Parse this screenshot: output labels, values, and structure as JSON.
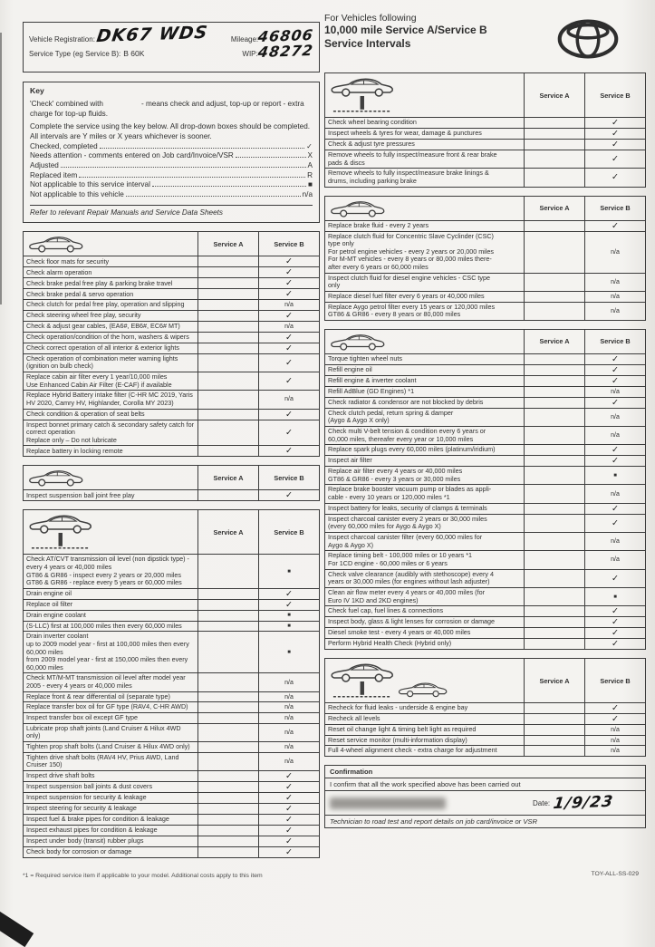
{
  "colors": {
    "paper": "#f3f2ef",
    "ink": "#2f2f2f",
    "handwriting": "#161616"
  },
  "vehicle_info": {
    "reg_label": "Vehicle Registration:",
    "reg_value": "DK67 WDS",
    "mileage_label": "Mileage:",
    "mileage_value": "46806",
    "service_type_label": "Service Type (eg Service B):",
    "service_type_value": "B 60K",
    "wip_label": "WIP:",
    "wip_value": "48272"
  },
  "title": {
    "line1": "For Vehicles following",
    "line2": "10,000 mile Service A/Service B",
    "line3": "Service Intervals"
  },
  "key": {
    "title": "Key",
    "intro1a": "'Check' combined with",
    "intro1b": "- means check and adjust, top-up or report - extra charge for top-up fluids.",
    "intro2": "Complete the service using the key below. All drop-down boxes should be completed. All intervals are Y miles or X years whichever is sooner.",
    "items": [
      {
        "label": "Checked, completed",
        "symbol": "✓"
      },
      {
        "label": "Needs attention - comments entered on Job card/Invoice/VSR",
        "symbol": "X"
      },
      {
        "label": "Adjusted",
        "symbol": "A"
      },
      {
        "label": "Replaced item",
        "symbol": "R"
      },
      {
        "label": "Not applicable to this service interval",
        "symbol": "■"
      },
      {
        "label": "Not applicable to this vehicle",
        "symbol": "n/a"
      }
    ],
    "footer": "Refer to relevant Repair Manuals and Service Data Sheets"
  },
  "col_headers": {
    "a": "Service A",
    "b": "Service B"
  },
  "tables": {
    "left": [
      {
        "icon": "car",
        "rows": [
          {
            "t": "Check floor mats for security",
            "a": "",
            "b": "✓"
          },
          {
            "t": "Check alarm operation",
            "a": "",
            "b": "✓"
          },
          {
            "t": "Check brake pedal free play & parking brake travel",
            "a": "",
            "b": "✓"
          },
          {
            "t": "Check brake pedal & servo operation",
            "a": "",
            "b": "✓"
          },
          {
            "t": "Check clutch for pedal free play, operation and slipping",
            "a": "",
            "b": "n/a"
          },
          {
            "t": "Check steering wheel free play, security",
            "a": "",
            "b": "✓"
          },
          {
            "t": "Check & adjust gear cables, (EA6#, EB6#, EC6# MT)",
            "a": "",
            "b": "n/a"
          },
          {
            "t": "Check operation/condition of the horn, washers & wipers",
            "a": "",
            "b": "✓"
          },
          {
            "t": "Check correct operation of all interior & exterior lights",
            "a": "",
            "b": "✓"
          },
          {
            "t": "Check operation of combination meter warning lights\n(ignition on bulb check)",
            "a": "",
            "b": "✓"
          },
          {
            "t": "Replace cabin air filter every 1 year/10,000 miles\nUse Enhanced Cabin Air Filter (E-CAF) if available",
            "a": "",
            "b": "✓"
          },
          {
            "t": "Replace Hybrid Battery intake filter (C-HR MC 2019, Yaris\nHV 2020, Camry HV, Highlander, Corolla MY 2023)",
            "a": "",
            "b": "n/a"
          },
          {
            "t": "Check condition & operation of seat belts",
            "a": "",
            "b": "✓"
          },
          {
            "t": "Inspect bonnet primary catch & secondary safety catch for\ncorrect operation\nReplace only – Do not lubricate",
            "a": "",
            "b": "✓"
          },
          {
            "t": "Replace battery in locking remote",
            "a": "",
            "b": "✓"
          }
        ]
      },
      {
        "icon": "car",
        "rows": [
          {
            "t": "Inspect suspension ball joint free play",
            "a": "",
            "b": "✓"
          }
        ]
      },
      {
        "icon": "lift",
        "rows": [
          {
            "t": "Check AT/CVT transmission oil level (non dipstick type) -\nevery 4 years or 40,000 miles\nGT86 & GR86 - inspect every 2 years or 20,000 miles\nGT86 & GR86 - replace every 5 years or 60,000 miles",
            "a": "",
            "b": "■"
          },
          {
            "t": "Drain engine oil",
            "a": "",
            "b": "✓"
          },
          {
            "t": "Replace oil filter",
            "a": "",
            "b": "✓"
          },
          {
            "t": "Drain engine coolant",
            "a": "",
            "b": "■"
          },
          {
            "t": "(S-LLC) first at 100,000 miles then every 60,000 miles",
            "a": "",
            "b": "■"
          },
          {
            "t": "Drain inverter coolant\nup to 2009 model year - first at 100,000 miles then every\n60,000 miles\nfrom 2009 model year - first at 150,000 miles then every\n60,000 miles",
            "a": "",
            "b": "■"
          },
          {
            "t": "Check MT/M-MT transmission oil level after model year\n2005 - every 4 years or 40,000 miles",
            "a": "",
            "b": "n/a"
          },
          {
            "t": "Replace front & rear differential oil (separate type)",
            "a": "",
            "b": "n/a"
          },
          {
            "t": "Replace transfer box oil for GF type (RAV4, C-HR AWD)",
            "a": "",
            "b": "n/a"
          },
          {
            "t": "Inspect transfer box oil except GF type",
            "a": "",
            "b": "n/a"
          },
          {
            "t": "Lubricate prop shaft joints (Land Cruiser & Hilux 4WD\nonly)",
            "a": "",
            "b": "n/a"
          },
          {
            "t": "Tighten prop shaft bolts (Land Cruiser & Hilux 4WD only)",
            "a": "",
            "b": "n/a"
          },
          {
            "t": "Tighten drive shaft bolts (RAV4 HV, Prius AWD, Land\nCruiser 150)",
            "a": "",
            "b": "n/a"
          },
          {
            "t": "Inspect drive shaft bolts",
            "a": "",
            "b": "✓"
          },
          {
            "t": "Inspect suspension ball joints & dust covers",
            "a": "",
            "b": "✓"
          },
          {
            "t": "Inspect suspension for security & leakage",
            "a": "",
            "b": "✓"
          },
          {
            "t": "Inspect steering for security & leakage",
            "a": "",
            "b": "✓"
          },
          {
            "t": "Inspect fuel & brake pipes for condition & leakage",
            "a": "",
            "b": "✓"
          },
          {
            "t": "Inspect exhaust pipes for condition & leakage",
            "a": "",
            "b": "✓"
          },
          {
            "t": "Inspect under body (transit) rubber plugs",
            "a": "",
            "b": "✓"
          },
          {
            "t": "Check body for corrosion or damage",
            "a": "",
            "b": "✓"
          }
        ]
      }
    ],
    "right": [
      {
        "icon": "lift",
        "rows": [
          {
            "t": "Check wheel bearing condition",
            "a": "",
            "b": "✓"
          },
          {
            "t": "Inspect wheels & tyres for wear, damage & punctures",
            "a": "",
            "b": "✓"
          },
          {
            "t": "Check & adjust tyre pressures",
            "a": "",
            "b": "✓"
          },
          {
            "t": "Remove wheels to fully inspect/measure front & rear brake\npads & discs",
            "a": "",
            "b": "✓"
          },
          {
            "t": "Remove wheels to fully inspect/measure brake linings &\ndrums, including parking brake",
            "a": "",
            "b": "✓"
          }
        ]
      },
      {
        "icon": "car",
        "rows": [
          {
            "t": "Replace brake fluid - every 2 years",
            "a": "",
            "b": "✓"
          },
          {
            "t": "Replace clutch fluid for Concentric Slave Cyclinder (CSC)\ntype only\nFor petrol engine vehicles - every 2 years or 20,000 miles\nFor M-MT vehicles - every 8 years or 80,000 miles there-\nafter every 6 years or 60,000 miles",
            "a": "",
            "b": "n/a"
          },
          {
            "t": "Inspect clutch fluid for diesel engine vehicles - CSC type\nonly",
            "a": "",
            "b": "n/a"
          },
          {
            "t": "Replace diesel fuel filter every 6 years or 40,000 miles",
            "a": "",
            "b": "n/a"
          },
          {
            "t": "Replace Aygo petrol filter every 15 years or 120,000 miles\nGT86 & GR86 - every 8 years or 80,000 miles",
            "a": "",
            "b": "n/a"
          }
        ]
      },
      {
        "icon": "car",
        "rows": [
          {
            "t": "Torque tighten wheel nuts",
            "a": "",
            "b": "✓"
          },
          {
            "t": "Refill engine oil",
            "a": "",
            "b": "✓"
          },
          {
            "t": "Refill engine & inverter coolant",
            "a": "",
            "b": "✓"
          },
          {
            "t": "Refill AdBlue (GD Engines) *1",
            "a": "",
            "b": "n/a"
          },
          {
            "t": "Check radiator & condensor are not blocked by debris",
            "a": "",
            "b": "✓"
          },
          {
            "t": "Check clutch pedal, return spring & damper\n(Aygo & Aygo X only)",
            "a": "",
            "b": "n/a"
          },
          {
            "t": "Check multi V-belt tension & condition every 6 years or\n60,000 miles, thereafer every year or 10,000 miles",
            "a": "",
            "b": "n/a"
          },
          {
            "t": "Replace spark plugs every 60,000 miles (platinum/iridium)",
            "a": "",
            "b": "✓"
          },
          {
            "t": "Inspect air filter",
            "a": "",
            "b": "✓"
          },
          {
            "t": "Replace air filter every 4 years or 40,000 miles\nGT86 & GR86 - every 3 years or 30,000 miles",
            "a": "",
            "b": "■"
          },
          {
            "t": "Replace brake booster vacuum pump or blades as appli-\ncable - every 10 years or 120,000 miles *1",
            "a": "",
            "b": "n/a"
          },
          {
            "t": "Inspect battery for leaks, security of clamps & terminals",
            "a": "",
            "b": "✓"
          },
          {
            "t": "Inspect charcoal canister every 2 years or 30,000 miles\n(every 60,000 miles for Aygo & Aygo X)",
            "a": "",
            "b": "✓"
          },
          {
            "t": "Inspect charcoal canister filter (every 60,000 miles for\nAygo & Aygo X)",
            "a": "",
            "b": "n/a"
          },
          {
            "t": "Replace timing belt - 100,000 miles or 10 years *1\nFor 1CD engine - 60,000 miles or 6 years",
            "a": "",
            "b": "n/a"
          },
          {
            "t": "Check valve clearance (audibly with stethoscope) every 4\nyears or 30,000 miles (for engines without lash adjuster)",
            "a": "",
            "b": "✓"
          },
          {
            "t": "Clean air flow meter every 4 years or 40,000 miles (for\nEuro IV 1KD and 2KD engines)",
            "a": "",
            "b": "■"
          },
          {
            "t": "Check fuel cap, fuel lines & connections",
            "a": "",
            "b": "✓"
          },
          {
            "t": "Inspect body, glass & light lenses for corrosion or damage",
            "a": "",
            "b": "✓"
          },
          {
            "t": "Diesel smoke test - every 4 years or 40,000 miles",
            "a": "",
            "b": "✓"
          },
          {
            "t": "Perform Hybrid Health Check (Hybrid only)",
            "a": "",
            "b": "✓"
          }
        ]
      },
      {
        "icon": "liftcar",
        "rows": [
          {
            "t": "Recheck for fluid leaks - underside & engine bay",
            "a": "",
            "b": "✓"
          },
          {
            "t": "Recheck all levels",
            "a": "",
            "b": "✓"
          },
          {
            "t": "Reset oil change light & timing belt light as required",
            "a": "",
            "b": "n/a"
          },
          {
            "t": "Reset service monitor (multi-information display)",
            "a": "",
            "b": "n/a"
          },
          {
            "t": "Full 4-wheel alignment check - extra charge for adjustment",
            "a": "",
            "b": "n/a"
          }
        ]
      }
    ]
  },
  "confirmation": {
    "title": "Confirmation",
    "statement": "I confirm that all the work specified above has been carried out",
    "date_label": "Date:",
    "date_value": "1/9/23",
    "footnote": "Technician to road test and report details on job card/invoice or VSR"
  },
  "page": {
    "footnote": "*1 = Required service item if applicable to your model. Additional costs apply to this item",
    "doc_code": "TOY-ALL-SS-029"
  }
}
